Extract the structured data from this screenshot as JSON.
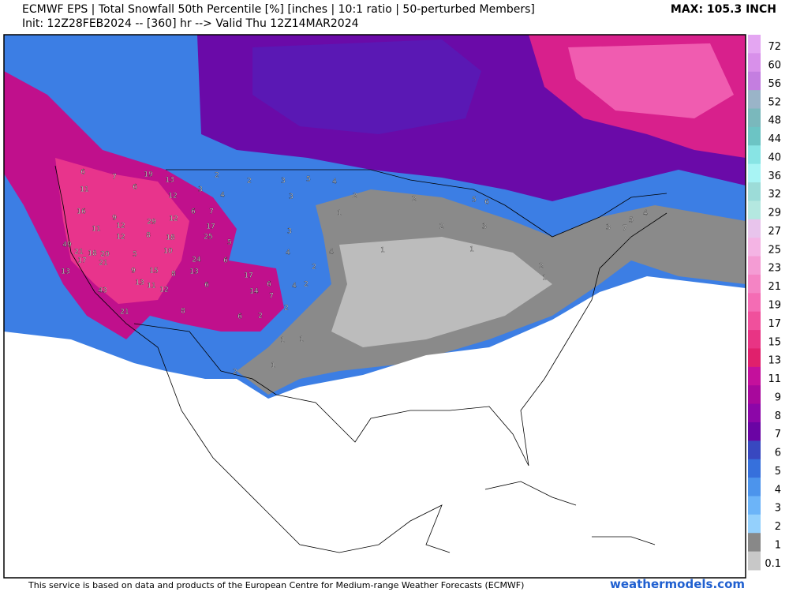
{
  "header": {
    "title": "ECMWF EPS | Total Snowfall 50th Percentile [%] [inches | 10:1 ratio | 50-perturbed Members]",
    "subtitle": "Init: 12Z28FEB2024 -- [360] hr --> Valid Thu 12Z14MAR2024",
    "max_label": "MAX: 105.3 INCH"
  },
  "legend": {
    "levels": [
      72,
      60,
      56,
      52,
      48,
      44,
      40,
      36,
      32,
      29,
      27,
      25,
      23,
      21,
      19,
      17,
      15,
      13,
      11,
      9,
      8,
      7,
      6,
      5,
      4,
      3,
      2,
      1,
      0.1
    ],
    "colors": [
      "#e4a6f2",
      "#d890ea",
      "#c47ee0",
      "#9ab4c8",
      "#7ab8bc",
      "#6cc4c4",
      "#88e4e4",
      "#a8f4f4",
      "#9cdcd8",
      "#b4e8e0",
      "#e8c4ec",
      "#f4b4e4",
      "#f49cd4",
      "#f484c4",
      "#f46cb4",
      "#f0509c",
      "#e83484",
      "#e0206c",
      "#c4109c",
      "#a8089c",
      "#8c06a8",
      "#6a04a4",
      "#3848c0",
      "#3670dc",
      "#4c94ec",
      "#6cb4f8",
      "#94d0fc",
      "#888888",
      "#c8c8c8"
    ]
  },
  "map": {
    "labels": [
      6,
      11,
      16,
      11,
      12,
      29,
      18,
      10,
      25,
      17,
      13,
      12,
      19,
      7,
      6,
      7,
      6,
      12,
      9,
      12,
      8,
      5,
      49,
      21,
      18,
      20,
      17,
      21,
      13,
      43,
      21,
      9,
      13,
      15,
      11,
      12,
      8,
      24,
      13,
      6,
      6,
      5,
      2,
      3,
      4,
      2,
      3,
      5,
      4,
      3,
      2,
      17,
      14,
      6,
      7,
      4,
      2,
      1,
      1,
      2,
      2,
      5,
      6,
      3,
      1,
      2,
      1,
      5,
      4,
      7,
      3,
      1,
      1,
      2,
      8,
      6,
      2,
      1,
      2,
      4,
      3,
      4,
      2
    ]
  },
  "footer": {
    "notice": "This service is based on data and products of the European Centre for Medium-range Weather Forecasts (ECMWF)",
    "site": "weathermodels.com"
  }
}
